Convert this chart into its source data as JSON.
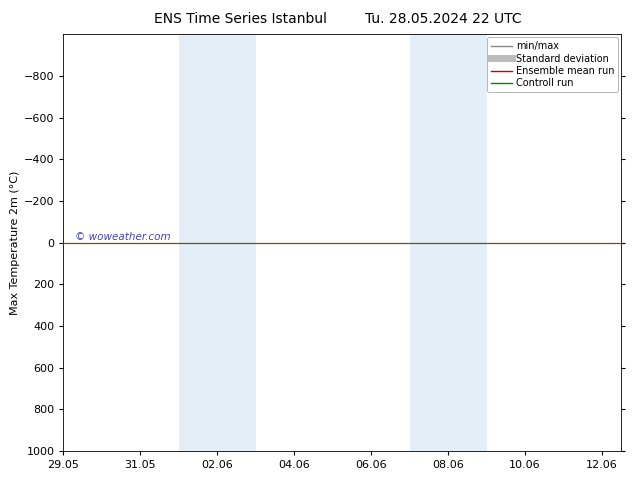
{
  "title": "ENS Time Series Istanbul",
  "subtitle": "Tu. 28.05.2024 22 UTC",
  "ylabel": "Max Temperature 2m (°C)",
  "watermark": "© woweather.com",
  "ylim_bottom": -1000,
  "ylim_top": 1000,
  "yticks": [
    -800,
    -600,
    -400,
    -200,
    0,
    200,
    400,
    600,
    800,
    1000
  ],
  "xtick_labels": [
    "29.05",
    "31.05",
    "02.06",
    "04.06",
    "06.06",
    "08.06",
    "10.06",
    "12.06"
  ],
  "xtick_positions": [
    0,
    2,
    4,
    6,
    8,
    10,
    12,
    14
  ],
  "x_min": 0,
  "x_max": 14.5,
  "shaded_bands": [
    {
      "x_start": 3.0,
      "x_end": 5.0
    },
    {
      "x_start": 9.0,
      "x_end": 11.0
    }
  ],
  "green_line_y": 0,
  "band_color": "#cce0f0",
  "band_alpha": 0.55,
  "green_line_color": "#008800",
  "red_line_color": "#cc0000",
  "legend_items": [
    {
      "label": "min/max",
      "color": "#888888",
      "lw": 1.0
    },
    {
      "label": "Standard deviation",
      "color": "#bbbbbb",
      "lw": 5
    },
    {
      "label": "Ensemble mean run",
      "color": "#cc0000",
      "lw": 1.0
    },
    {
      "label": "Controll run",
      "color": "#008800",
      "lw": 1.0
    }
  ],
  "title_fontsize": 10,
  "axis_label_fontsize": 8,
  "tick_fontsize": 8,
  "legend_fontsize": 7,
  "watermark_color": "#3333aa",
  "background_color": "#ffffff"
}
